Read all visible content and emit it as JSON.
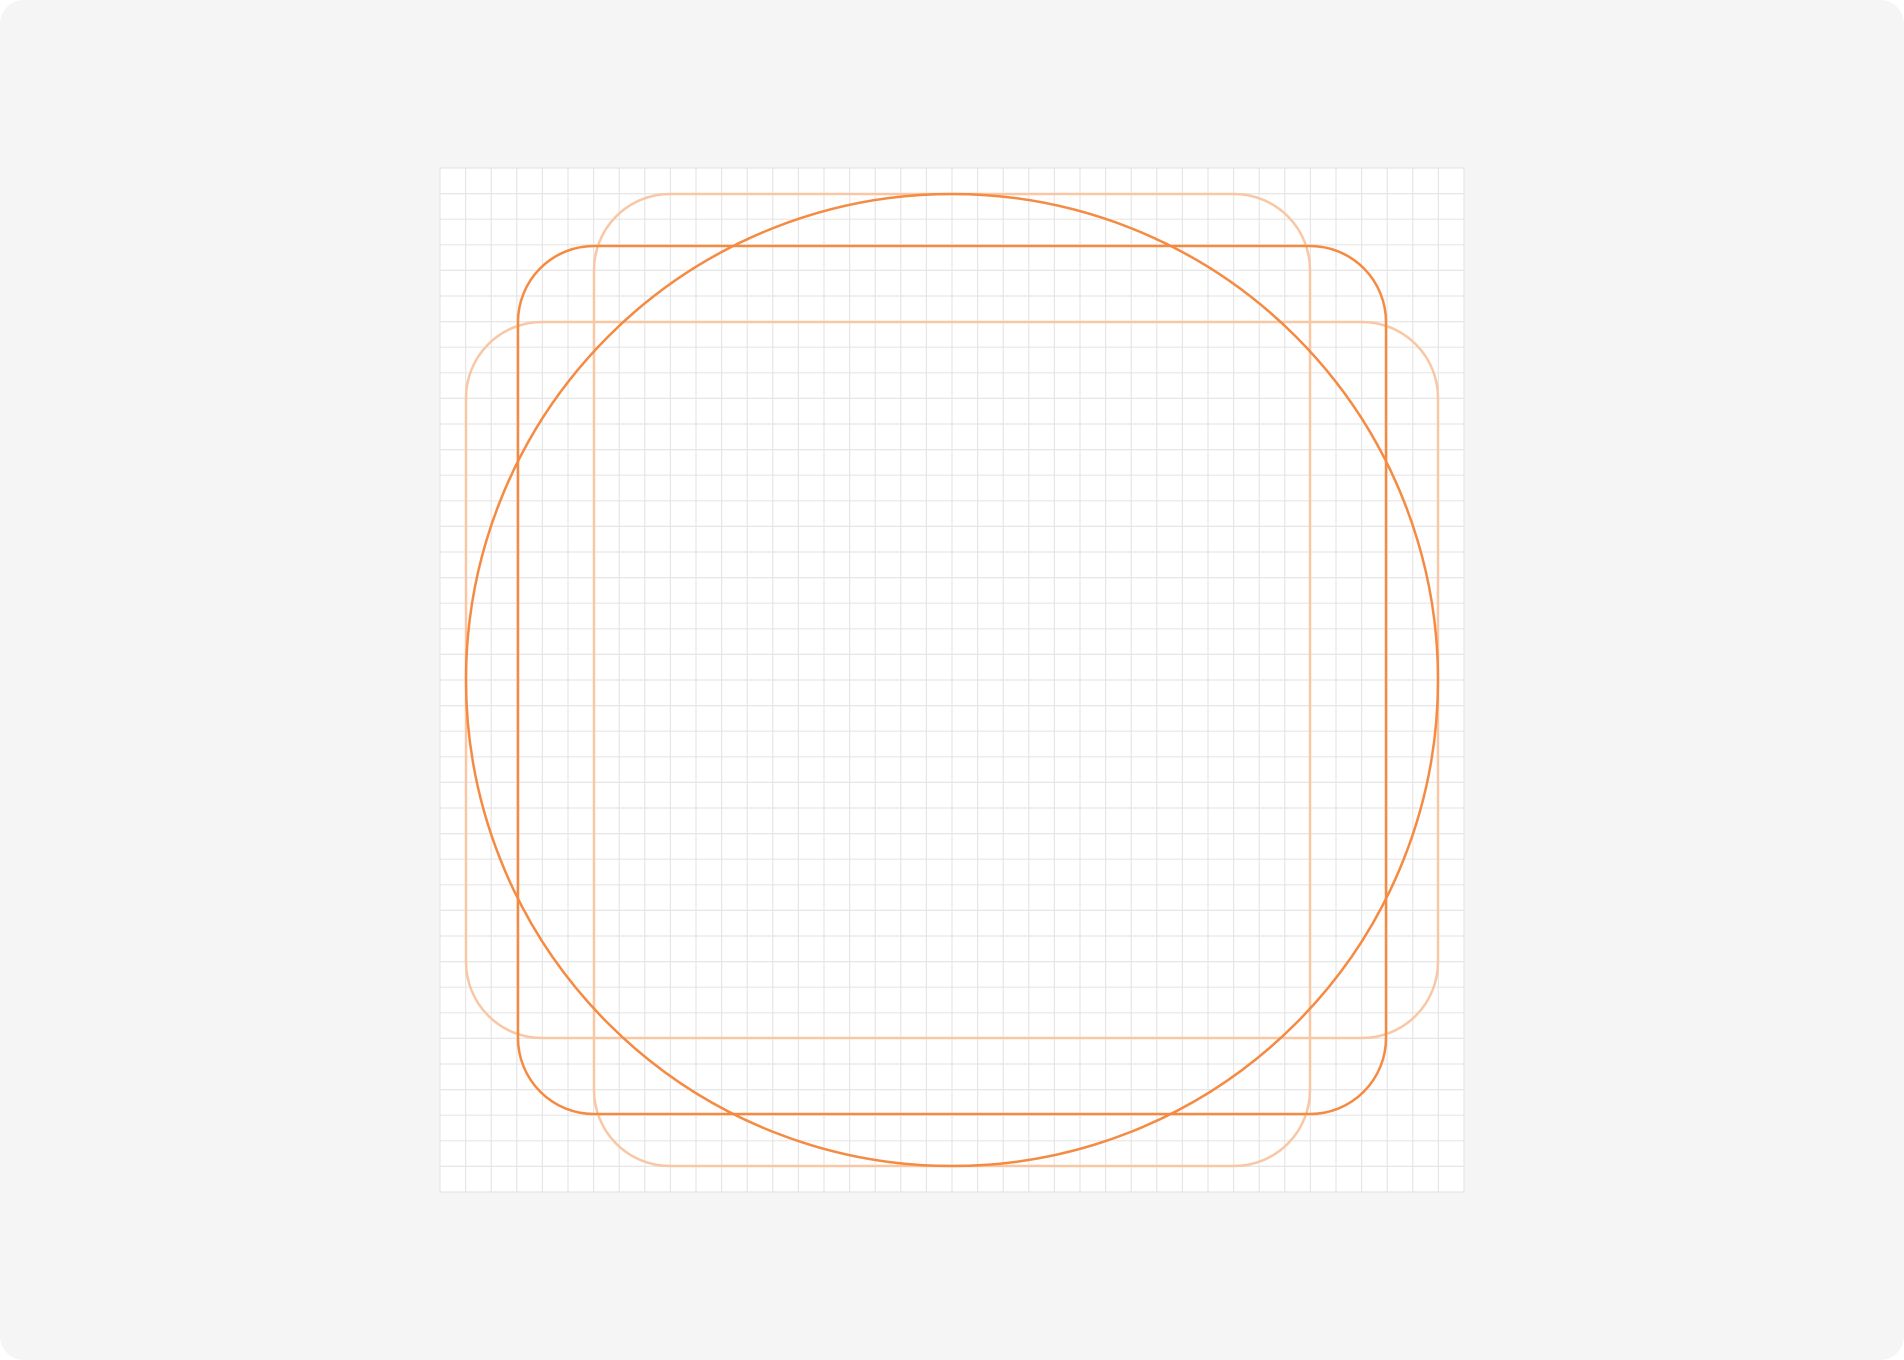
{
  "diagram": {
    "type": "icon-keyline-grid",
    "grid": {
      "columns": 40,
      "rows": 40,
      "show": true
    },
    "shapes": [
      {
        "kind": "circle",
        "emphasis": "primary"
      },
      {
        "kind": "square",
        "emphasis": "primary"
      },
      {
        "kind": "portrait-rectangle",
        "emphasis": "secondary"
      },
      {
        "kind": "landscape-rectangle",
        "emphasis": "secondary"
      }
    ],
    "colors": {
      "page_background": "#f5f5f5",
      "grid_background": "#ffffff",
      "grid_line": "#e6e6e6",
      "keyline_primary": "#f58a42",
      "keyline_secondary": "#f8c7a6"
    }
  }
}
